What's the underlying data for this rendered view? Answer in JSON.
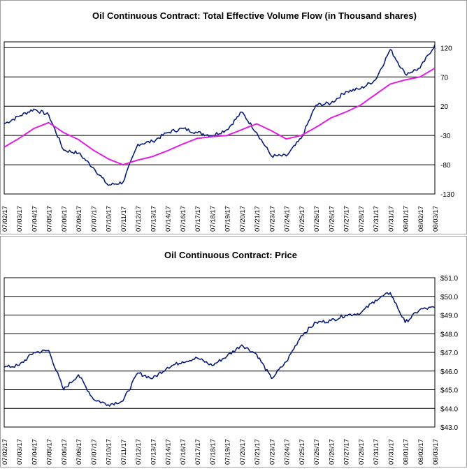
{
  "chart_data": [
    {
      "type": "line",
      "title": "Oil Continuous Contract: Total Effective Volume Flow (in Thousand shares)",
      "xlabel": "",
      "ylabel": "",
      "ylim": [
        -130,
        130
      ],
      "yticks": [
        120,
        70,
        20,
        -30,
        -80,
        -130
      ],
      "grid": true,
      "legend": "none",
      "categories": [
        "07/02/17",
        "07/03/17",
        "07/04/17",
        "07/05/17",
        "07/06/17",
        "07/06/17",
        "07/07/17",
        "07/10/17",
        "07/11/17",
        "07/12/17",
        "07/13/17",
        "07/14/17",
        "07/16/17",
        "07/17/17",
        "07/18/17",
        "07/19/17",
        "07/20/17",
        "07/21/17",
        "07/23/17",
        "07/24/17",
        "07/25/17",
        "07/26/17",
        "07/26/17",
        "07/27/17",
        "07/28/17",
        "07/31/17",
        "07/31/17",
        "08/01/17",
        "08/02/17",
        "08/03/17"
      ],
      "series": [
        {
          "color": "#0a1e78",
          "values": [
            -10,
            3,
            15,
            5,
            -55,
            -60,
            -85,
            -115,
            -110,
            -45,
            -40,
            -25,
            -18,
            -25,
            -30,
            -20,
            10,
            -25,
            -65,
            -65,
            -35,
            22,
            25,
            45,
            50,
            65,
            117,
            75,
            85,
            125
          ]
        },
        {
          "color": "#e020e0",
          "values": [
            -50,
            -35,
            -18,
            -8,
            -25,
            -37,
            -55,
            -70,
            -80,
            -72,
            -66,
            -56,
            -45,
            -35,
            -32,
            -30,
            -20,
            -10,
            -22,
            -36,
            -30,
            -16,
            0,
            10,
            22,
            40,
            58,
            65,
            70,
            85
          ]
        }
      ]
    },
    {
      "type": "line",
      "title": "Oil Continuous Contract: Price",
      "xlabel": "",
      "ylabel": "",
      "ylim": [
        43,
        51
      ],
      "yticks": [
        "$51.0",
        "$50.0",
        "$49.0",
        "$48.0",
        "$47.0",
        "$46.0",
        "$45.0",
        "$44.0",
        "$43.0"
      ],
      "grid": true,
      "legend": "none",
      "categories": [
        "07/02/17",
        "07/03/17",
        "07/04/17",
        "07/05/17",
        "07/06/17",
        "07/06/17",
        "07/07/17",
        "07/10/17",
        "07/11/17",
        "07/12/17",
        "07/13/17",
        "07/14/17",
        "07/16/17",
        "07/17/17",
        "07/18/17",
        "07/19/17",
        "07/20/17",
        "07/21/17",
        "07/23/17",
        "07/24/17",
        "07/25/17",
        "07/26/17",
        "07/26/17",
        "07/27/17",
        "07/28/17",
        "07/31/17",
        "07/31/17",
        "08/01/17",
        "08/02/17",
        "08/03/17"
      ],
      "series": [
        {
          "color": "#0a1e78",
          "values": [
            46.2,
            46.3,
            47.0,
            47.1,
            45.0,
            45.8,
            44.5,
            44.2,
            44.4,
            45.9,
            45.6,
            46.2,
            46.5,
            46.7,
            46.3,
            46.8,
            47.4,
            46.9,
            45.6,
            46.5,
            47.9,
            48.6,
            48.7,
            49.0,
            49.1,
            49.8,
            50.2,
            48.6,
            49.3,
            49.4
          ]
        }
      ]
    }
  ]
}
